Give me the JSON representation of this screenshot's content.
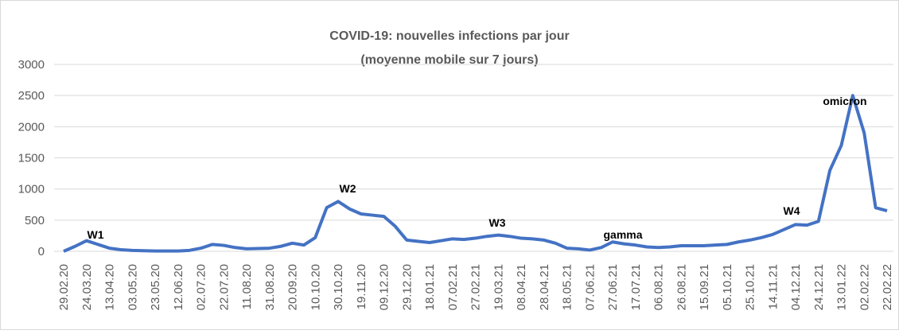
{
  "chart_data": {
    "type": "line",
    "title": "COVID-19: nouvelles infections par jour",
    "subtitle": "(moyenne mobile sur 7 jours)",
    "categories": [
      "29.02.20",
      null,
      "24.03.20",
      null,
      "13.04.20",
      null,
      "03.05.20",
      null,
      "23.05.20",
      null,
      "12.06.20",
      null,
      "02.07.20",
      null,
      "22.07.20",
      null,
      "11.08.20",
      null,
      "31.08.20",
      null,
      "20.09.20",
      null,
      "10.10.20",
      null,
      "30.10.20",
      null,
      "19.11.20",
      null,
      "09.12.20",
      null,
      "29.12.20",
      null,
      "18.01.21",
      null,
      "07.02.21",
      null,
      "27.02.21",
      null,
      "19.03.21",
      null,
      "08.04.21",
      null,
      "28.04.21",
      null,
      "18.05.21",
      null,
      "07.06.21",
      null,
      "27.06.21",
      null,
      "17.07.21",
      null,
      "06.08.21",
      null,
      "26.08.21",
      null,
      "15.09.21",
      null,
      "05.10.21",
      null,
      "25.10.21",
      null,
      "14.11.21",
      null,
      "04.12.21",
      null,
      "24.12.21",
      null,
      "13.01.22",
      null,
      "02.02.22",
      null,
      "22.02.22"
    ],
    "series": [
      {
        "color": "#4472c4",
        "values": [
          0,
          80,
          170,
          110,
          50,
          25,
          15,
          10,
          5,
          5,
          5,
          15,
          50,
          110,
          95,
          60,
          40,
          45,
          50,
          80,
          130,
          100,
          220,
          700,
          800,
          680,
          600,
          580,
          560,
          400,
          180,
          160,
          140,
          170,
          200,
          190,
          210,
          240,
          260,
          240,
          210,
          200,
          180,
          130,
          50,
          40,
          20,
          60,
          150,
          120,
          100,
          70,
          60,
          70,
          90,
          90,
          90,
          100,
          110,
          150,
          180,
          220,
          270,
          350,
          430,
          420,
          480,
          1300,
          1700,
          2500,
          1900,
          700,
          650
        ]
      }
    ],
    "annotations": [
      "W1",
      "W2",
      "W3",
      "gamma",
      "W4",
      "omicron"
    ],
    "ylim": [
      0,
      3000
    ],
    "yticks": [
      0,
      500,
      1000,
      1500,
      2000,
      2500,
      3000
    ],
    "grid": true
  }
}
